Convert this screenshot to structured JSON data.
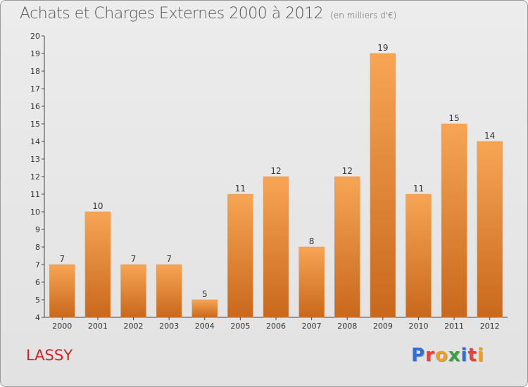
{
  "header": {
    "title": "Achats et Charges Externes 2000 à 2012",
    "subtitle": "(en milliers d'€)"
  },
  "footer": {
    "commune": "LASSY",
    "logo": "Proxiti"
  },
  "colors": {
    "bar_light": "#f7a555",
    "bar_dark": "#c9681c",
    "axis": "#444444",
    "grid": "#c8c8c8",
    "commune_text": "#d62020",
    "logo_letters": [
      "#2f6fd8",
      "#e8423a",
      "#f0a020",
      "#3aa040",
      "#2f6fd8",
      "#e8423a",
      "#f0a020"
    ]
  },
  "chart_data": {
    "type": "bar",
    "title": "Achats et Charges Externes 2000 à 2012",
    "subtitle": "(en milliers d'€)",
    "categories": [
      "2000",
      "2001",
      "2002",
      "2003",
      "2004",
      "2005",
      "2006",
      "2007",
      "2008",
      "2009",
      "2010",
      "2011",
      "2012"
    ],
    "values": [
      7,
      10,
      7,
      7,
      5,
      11,
      12,
      8,
      12,
      19,
      11,
      15,
      14
    ],
    "data_labels": [
      "7",
      "10",
      "7",
      "7",
      "5",
      "11",
      "12",
      "8",
      "12",
      "19",
      "11",
      "15",
      "14"
    ],
    "ylim": [
      4,
      20
    ],
    "yticks": [
      "4",
      "5",
      "6",
      "7",
      "8",
      "9",
      "10",
      "11",
      "12",
      "13",
      "14",
      "15",
      "16",
      "17",
      "18",
      "19",
      "20"
    ],
    "grid": false
  }
}
